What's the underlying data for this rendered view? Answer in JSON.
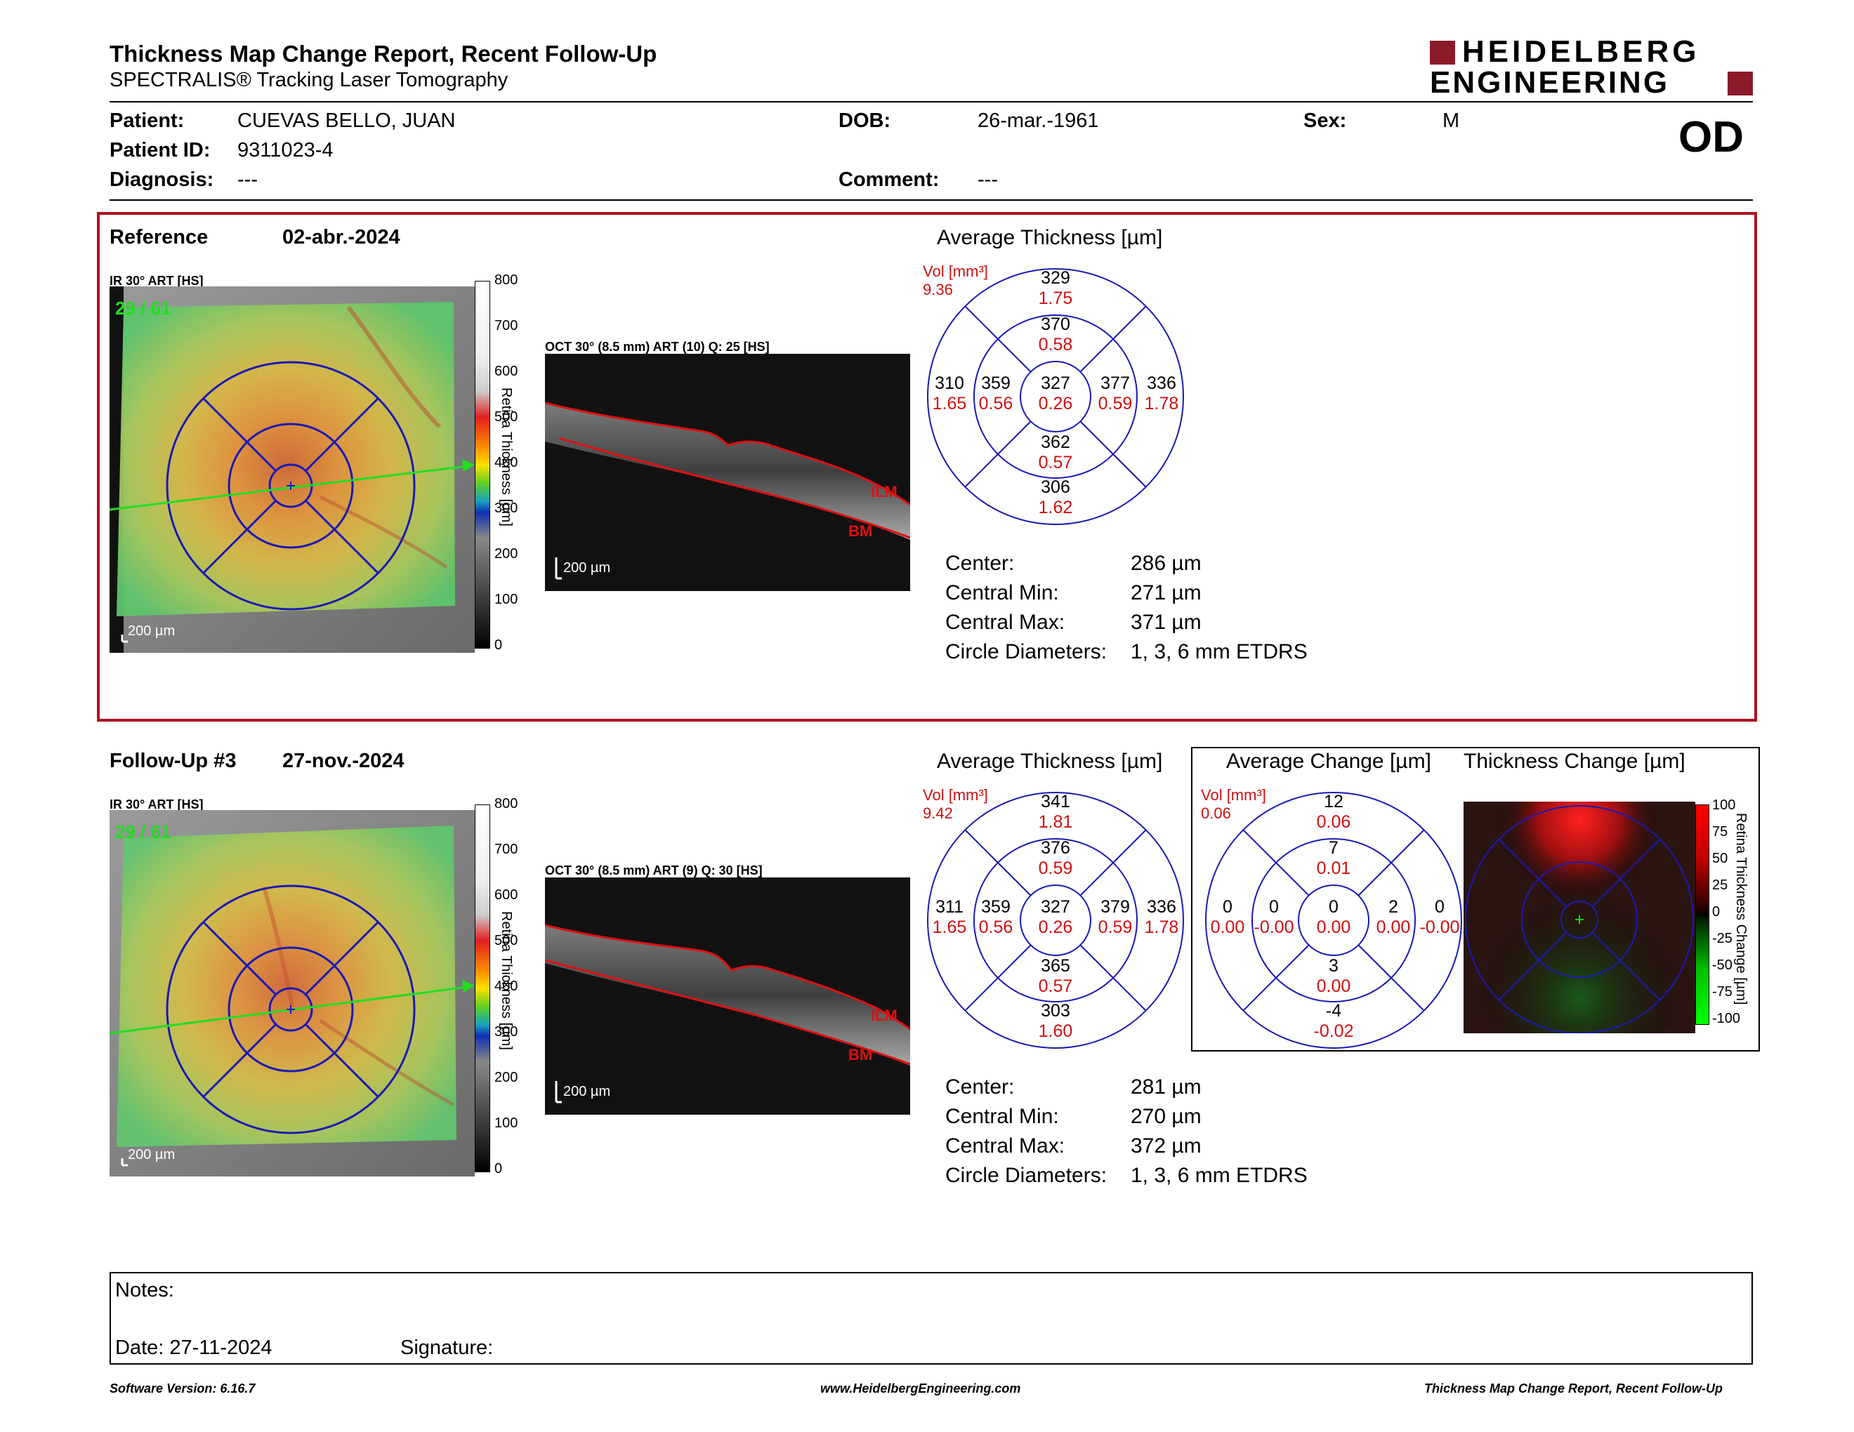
{
  "header": {
    "title": "Thickness Map Change Report, Recent Follow-Up",
    "subtitle": "SPECTRALIS® Tracking Laser Tomography",
    "logo_line1": "HEIDELBERG",
    "logo_line2": "ENGINEERING",
    "eye": "OD"
  },
  "patient": {
    "patient_label": "Patient:",
    "patient_value": "CUEVAS BELLO, JUAN",
    "id_label": "Patient ID:",
    "id_value": "9311023-4",
    "diagnosis_label": "Diagnosis:",
    "diagnosis_value": "---",
    "dob_label": "DOB:",
    "dob_value": "26-mar.-1961",
    "comment_label": "Comment:",
    "comment_value": "---",
    "sex_label": "Sex:",
    "sex_value": "M"
  },
  "reference": {
    "label": "Reference",
    "date": "02-abr.-2024",
    "ir_label": "IR 30° ART [HS]",
    "ir_overlay": "29 / 61",
    "scale": "200 µm",
    "oct_label": "OCT 30° (8.5 mm) ART (10) Q: 25 [HS]",
    "ilm": "ILM",
    "bm": "BM",
    "avg_title": "Average Thickness [µm]",
    "vol_label": "Vol [mm³]",
    "vol_value": "9.36",
    "etdrs": {
      "outer_sup": [
        "329",
        "1.75"
      ],
      "inner_sup": [
        "370",
        "0.58"
      ],
      "outer_temp": [
        "310",
        "1.65"
      ],
      "inner_temp": [
        "359",
        "0.56"
      ],
      "center": [
        "327",
        "0.26"
      ],
      "inner_nas": [
        "377",
        "0.59"
      ],
      "outer_nas": [
        "336",
        "1.78"
      ],
      "inner_inf": [
        "362",
        "0.57"
      ],
      "outer_inf": [
        "306",
        "1.62"
      ]
    },
    "stats": {
      "center_label": "Center:",
      "center_value": "286 µm",
      "min_label": "Central Min:",
      "min_value": "271 µm",
      "max_label": "Central Max:",
      "max_value": "371 µm",
      "diam_label": "Circle Diameters:",
      "diam_value": "1, 3, 6 mm ETDRS"
    }
  },
  "followup": {
    "label": "Follow-Up #3",
    "date": "27-nov.-2024",
    "ir_label": "IR 30° ART [HS]",
    "ir_overlay": "29 / 61",
    "scale": "200 µm",
    "oct_label": "OCT 30° (8.5 mm) ART (9) Q: 30 [HS]",
    "ilm": "ILM",
    "bm": "BM",
    "avg_title": "Average Thickness [µm]",
    "vol_label": "Vol [mm³]",
    "vol_value": "9.42",
    "etdrs": {
      "outer_sup": [
        "341",
        "1.81"
      ],
      "inner_sup": [
        "376",
        "0.59"
      ],
      "outer_temp": [
        "311",
        "1.65"
      ],
      "inner_temp": [
        "359",
        "0.56"
      ],
      "center": [
        "327",
        "0.26"
      ],
      "inner_nas": [
        "379",
        "0.59"
      ],
      "outer_nas": [
        "336",
        "1.78"
      ],
      "inner_inf": [
        "365",
        "0.57"
      ],
      "outer_inf": [
        "303",
        "1.60"
      ]
    },
    "stats": {
      "center_label": "Center:",
      "center_value": "281 µm",
      "min_label": "Central Min:",
      "min_value": "270 µm",
      "max_label": "Central Max:",
      "max_value": "372 µm",
      "diam_label": "Circle Diameters:",
      "diam_value": "1, 3, 6 mm ETDRS"
    },
    "change": {
      "avg_change_title": "Average Change [µm]",
      "thick_change_title": "Thickness Change [µm]",
      "vol_label": "Vol [mm³]",
      "vol_value": "0.06",
      "etdrs": {
        "outer_sup": [
          "12",
          "0.06"
        ],
        "inner_sup": [
          "7",
          "0.01"
        ],
        "outer_temp": [
          "0",
          "0.00"
        ],
        "inner_temp": [
          "0",
          "-0.00"
        ],
        "center": [
          "0",
          "0.00"
        ],
        "inner_nas": [
          "2",
          "0.00"
        ],
        "outer_nas": [
          "0",
          "-0.00"
        ],
        "inner_inf": [
          "3",
          "0.00"
        ],
        "outer_inf": [
          "-4",
          "-0.02"
        ]
      },
      "scale_title": "Retina Thickness Change [µm]",
      "scale_ticks": [
        "100",
        "75",
        "50",
        "25",
        "0",
        "-25",
        "-50",
        "-75",
        "-100"
      ]
    }
  },
  "thickness_scale": {
    "title": "Retina Thickness [µm]",
    "ticks": [
      "800",
      "700",
      "600",
      "500",
      "400",
      "300",
      "200",
      "100",
      "0"
    ]
  },
  "notes": {
    "notes_label": "Notes:",
    "date_label": "Date: 27-11-2024",
    "signature_label": "Signature:"
  },
  "footer": {
    "left": "Software Version: 6.16.7",
    "center": "www.HeidelbergEngineering.com",
    "right": "Thickness Map Change Report, Recent Follow-Up"
  },
  "colors": {
    "brand": "#8b1a2b",
    "ring": "#1a1ab4",
    "red_text": "#d01010",
    "frame": "#b01020"
  }
}
